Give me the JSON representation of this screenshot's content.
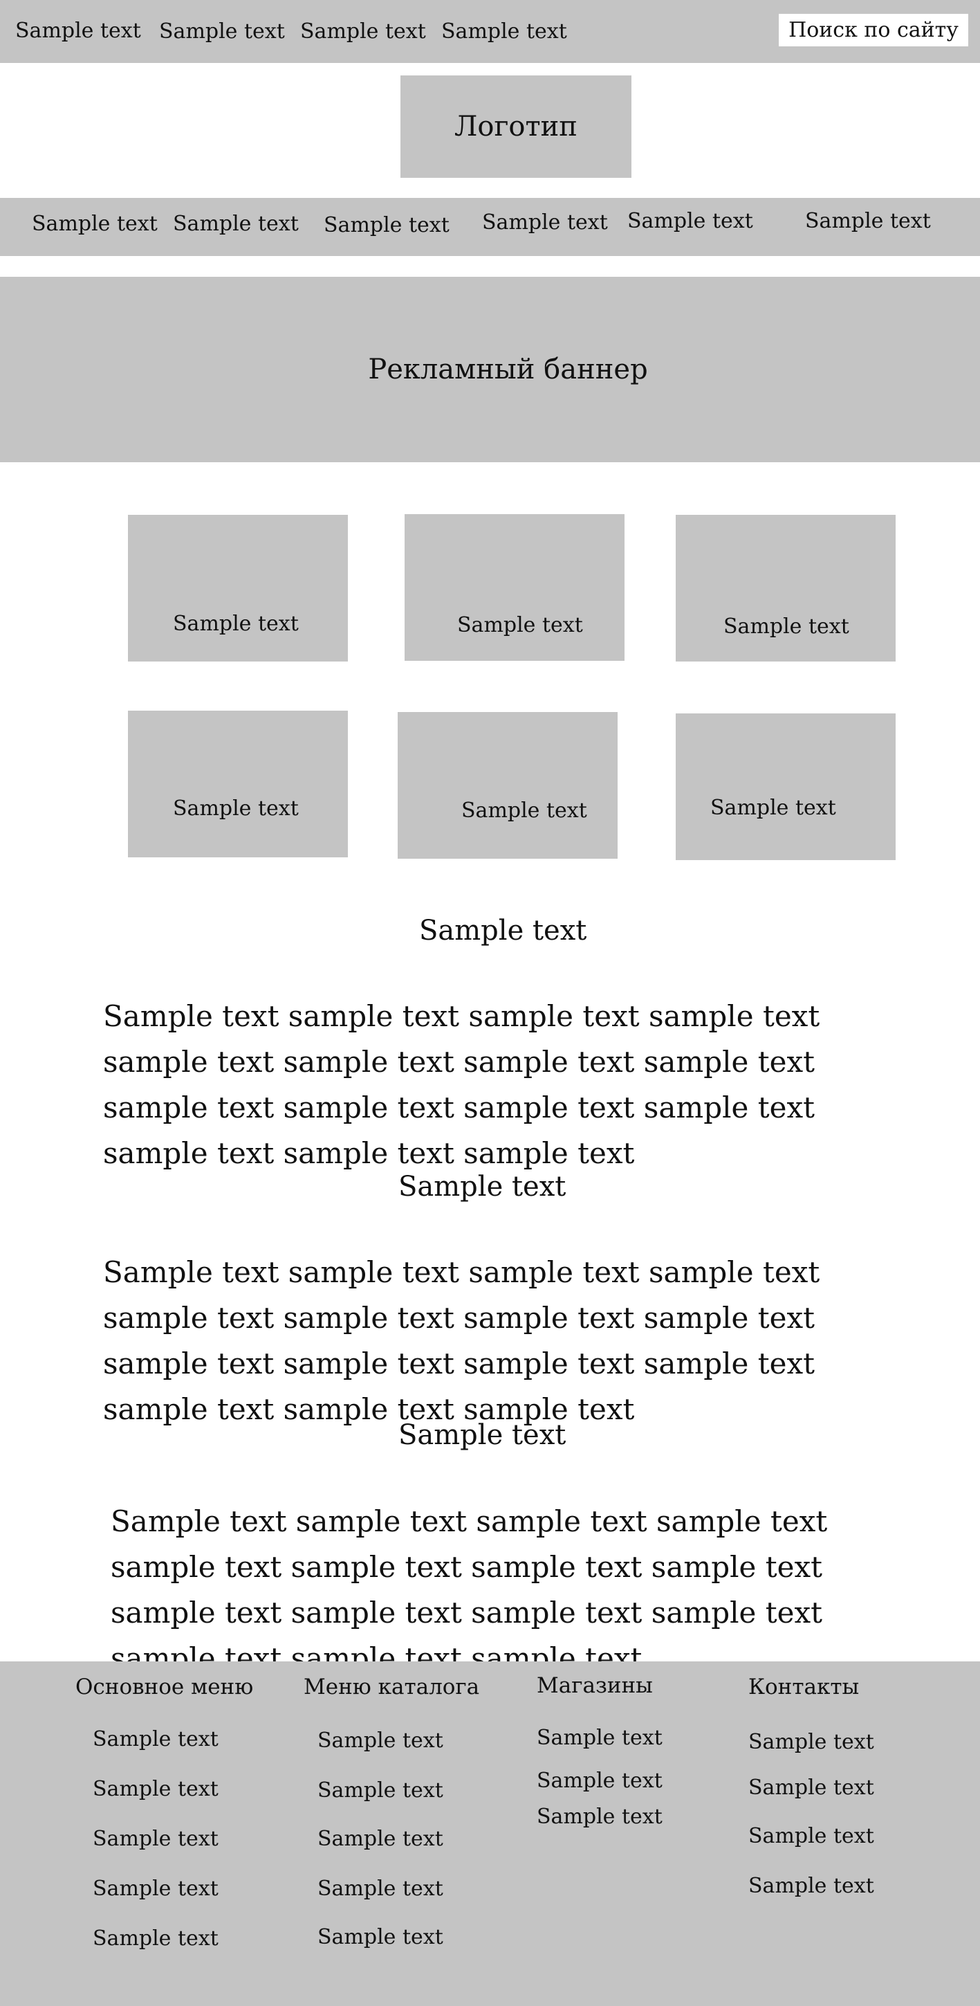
{
  "top_bar": {
    "links": [
      "Sample text",
      "Sample text",
      "Sample text",
      "Sample text"
    ],
    "search_label": "Поиск по сайту"
  },
  "logo": {
    "label": "Логотип"
  },
  "nav": {
    "items": [
      "Sample text",
      "Sample text",
      "Sample text",
      "Sample text",
      "Sample text",
      "Sample text"
    ]
  },
  "banner": {
    "label": "Рекламный баннер"
  },
  "cards": [
    {
      "label": "Sample text"
    },
    {
      "label": "Sample text"
    },
    {
      "label": "Sample text"
    },
    {
      "label": "Sample text"
    },
    {
      "label": "Sample text"
    },
    {
      "label": "Sample text"
    }
  ],
  "sections": [
    {
      "title": "Sample text",
      "body": "Sample text sample text sample text sample text sample text sample text sample text sample text sample text sample text sample text sample text sample text sample text sample text"
    },
    {
      "title": "Sample text",
      "body": "Sample text sample text sample text sample text sample text sample text sample text sample text sample text sample text sample text sample text sample text sample text sample text"
    },
    {
      "title": "Sample text",
      "body": "Sample text sample text sample text sample text sample text sample text sample text sample text sample text sample text sample text sample text sample text sample text sample text"
    }
  ],
  "footer": {
    "columns": [
      {
        "heading": "Основное меню",
        "links": [
          "Sample text",
          "Sample text",
          "Sample text",
          "Sample text",
          "Sample text"
        ]
      },
      {
        "heading": "Меню каталога",
        "links": [
          "Sample text",
          "Sample text",
          "Sample text",
          "Sample text",
          "Sample text"
        ]
      },
      {
        "heading": "Магазины",
        "links": [
          "Sample text",
          "Sample text",
          "Sample text"
        ]
      },
      {
        "heading": "Контакты",
        "links": [
          "Sample text",
          "Sample text",
          "Sample text",
          "Sample text"
        ]
      }
    ]
  },
  "colors": {
    "placeholder_gray": "#c4c4c4",
    "background": "#ffffff",
    "text": "#111111"
  }
}
